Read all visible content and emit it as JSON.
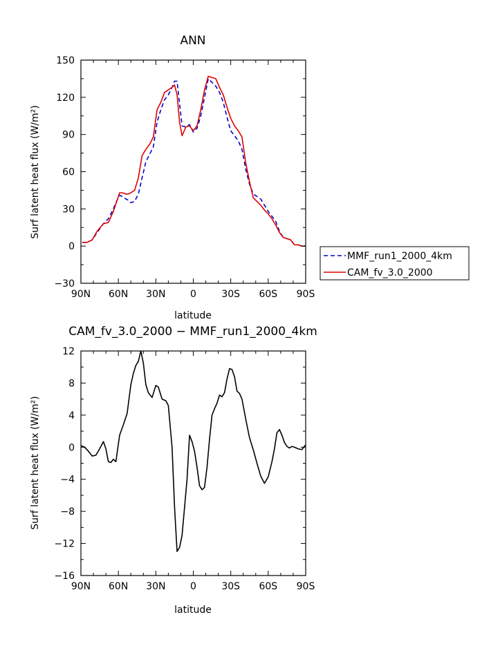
{
  "chart_data": [
    {
      "type": "line",
      "title": "ANN",
      "xlabel": "latitude",
      "ylabel": "Surf latent heat flux (W/m²)",
      "xlim": [
        -90,
        90
      ],
      "ylim": [
        -30,
        150
      ],
      "x_ticks": [
        -90,
        -60,
        -30,
        0,
        30,
        60,
        90
      ],
      "x_tick_labels": [
        "90N",
        "60N",
        "30N",
        "0",
        "30S",
        "60S",
        "90S"
      ],
      "y_ticks": [
        -30,
        0,
        30,
        60,
        90,
        120,
        150
      ],
      "y_tick_labels": [
        "−30",
        "0",
        "30",
        "60",
        "90",
        "120",
        "150"
      ],
      "legend_position": "right",
      "series": [
        {
          "name": "MMF_run1_2000_4km",
          "color": "#0000cc",
          "dash": "dashed",
          "x": [
            -89,
            -85,
            -81,
            -77,
            -72,
            -68,
            -64,
            -62,
            -59,
            -57,
            -54,
            -52,
            -50,
            -47,
            -44,
            -41,
            -38,
            -35,
            -32,
            -29,
            -26,
            -23,
            -20,
            -17,
            -15,
            -13,
            -11,
            -9,
            -6,
            -3,
            0,
            3,
            6,
            9,
            12,
            15,
            18,
            21,
            24,
            27,
            30,
            33,
            36,
            39,
            42,
            45,
            48,
            51,
            54,
            57,
            60,
            63,
            66,
            69,
            72,
            75,
            78,
            81,
            84,
            87,
            90
          ],
          "y": [
            3,
            3,
            5,
            11,
            18,
            22,
            30,
            35,
            41,
            40,
            38,
            37,
            35,
            36,
            42,
            55,
            68,
            74,
            80,
            100,
            110,
            118,
            122,
            128,
            133,
            133,
            115,
            97,
            96,
            98,
            92,
            95,
            105,
            120,
            135,
            132,
            129,
            124,
            116,
            104,
            93,
            89,
            85,
            78,
            62,
            50,
            42,
            40,
            38,
            33,
            28,
            24,
            20,
            12,
            7,
            6,
            5,
            1,
            1,
            0,
            0
          ]
        },
        {
          "name": "CAM_fv_3.0_2000",
          "color": "#dd0000",
          "dash": "solid",
          "x": [
            -89,
            -85,
            -81,
            -77,
            -72,
            -68,
            -64,
            -62,
            -59,
            -57,
            -54,
            -52,
            -50,
            -47,
            -44,
            -41,
            -38,
            -35,
            -32,
            -29,
            -26,
            -23,
            -20,
            -17,
            -15,
            -13,
            -11,
            -9,
            -6,
            -3,
            0,
            3,
            6,
            9,
            12,
            15,
            18,
            21,
            24,
            27,
            30,
            33,
            36,
            39,
            42,
            45,
            48,
            51,
            54,
            57,
            60,
            63,
            66,
            69,
            72,
            75,
            78,
            81,
            84,
            87,
            90
          ],
          "y": [
            3,
            3,
            5,
            12,
            18,
            19,
            28,
            34,
            43,
            43,
            42,
            42,
            43,
            45,
            55,
            73,
            78,
            82,
            88,
            110,
            116,
            124,
            126,
            128,
            130,
            122,
            100,
            89,
            96,
            97,
            93,
            97,
            110,
            126,
            137,
            136,
            135,
            128,
            122,
            112,
            103,
            97,
            93,
            88,
            67,
            52,
            39,
            36,
            33,
            29,
            26,
            22,
            17,
            11,
            7,
            6,
            5,
            1,
            1,
            0,
            0
          ]
        }
      ]
    },
    {
      "type": "line",
      "title": "CAM_fv_3.0_2000 − MMF_run1_2000_4km",
      "xlabel": "latitude",
      "ylabel": "Surf latent heat flux (W/m²)",
      "xlim": [
        -90,
        90
      ],
      "ylim": [
        -16,
        12
      ],
      "x_ticks": [
        -90,
        -60,
        -30,
        0,
        30,
        60,
        90
      ],
      "x_tick_labels": [
        "90N",
        "60N",
        "30N",
        "0",
        "30S",
        "60S",
        "90S"
      ],
      "y_ticks": [
        -16,
        -12,
        -8,
        -4,
        0,
        4,
        8,
        12
      ],
      "y_tick_labels": [
        "−16",
        "−12",
        "−8",
        "−4",
        "0",
        "4",
        "8",
        "12"
      ],
      "series": [
        {
          "color": "#000000",
          "dash": "solid",
          "x": [
            -90,
            -87,
            -84,
            -81,
            -78,
            -75,
            -72,
            -70,
            -68,
            -66,
            -64,
            -62,
            -59,
            -56,
            -53,
            -50,
            -48,
            -46,
            -44,
            -42,
            -40,
            -38,
            -36,
            -33,
            -30,
            -28,
            -25,
            -22,
            -20,
            -17,
            -15,
            -13,
            -11,
            -9,
            -7,
            -5,
            -3,
            -1,
            1,
            3,
            5,
            7,
            9,
            11,
            13,
            15,
            17,
            19,
            21,
            23,
            25,
            27,
            29,
            31,
            33,
            35,
            37,
            39,
            42,
            45,
            48,
            51,
            54,
            57,
            60,
            63,
            65,
            67,
            69,
            71,
            73,
            75,
            77,
            79,
            81,
            84,
            87,
            90
          ],
          "y": [
            0.2,
            0,
            -0.5,
            -1.1,
            -1,
            -0.2,
            0.7,
            -0.2,
            -1.8,
            -1.9,
            -1.5,
            -1.8,
            1.5,
            2.8,
            4.2,
            7.8,
            9.2,
            10.2,
            10.7,
            12,
            10.5,
            7.8,
            6.8,
            6.2,
            7.7,
            7.5,
            6,
            5.8,
            5.2,
            0,
            -7.5,
            -13,
            -12.5,
            -11,
            -7.5,
            -4,
            1.5,
            0.7,
            -0.5,
            -2.5,
            -4.8,
            -5.3,
            -5,
            -2.5,
            1,
            4,
            4.8,
            5.5,
            6.5,
            6.3,
            6.8,
            8.5,
            9.8,
            9.7,
            8.8,
            7,
            6.7,
            6,
            3.5,
            1.2,
            -0.3,
            -2,
            -3.6,
            -4.5,
            -3.7,
            -1.8,
            -0.2,
            1.8,
            2.2,
            1.5,
            0.6,
            0.1,
            -0.1,
            0.1,
            0,
            -0.2,
            -0.3,
            0.3
          ]
        }
      ]
    }
  ]
}
